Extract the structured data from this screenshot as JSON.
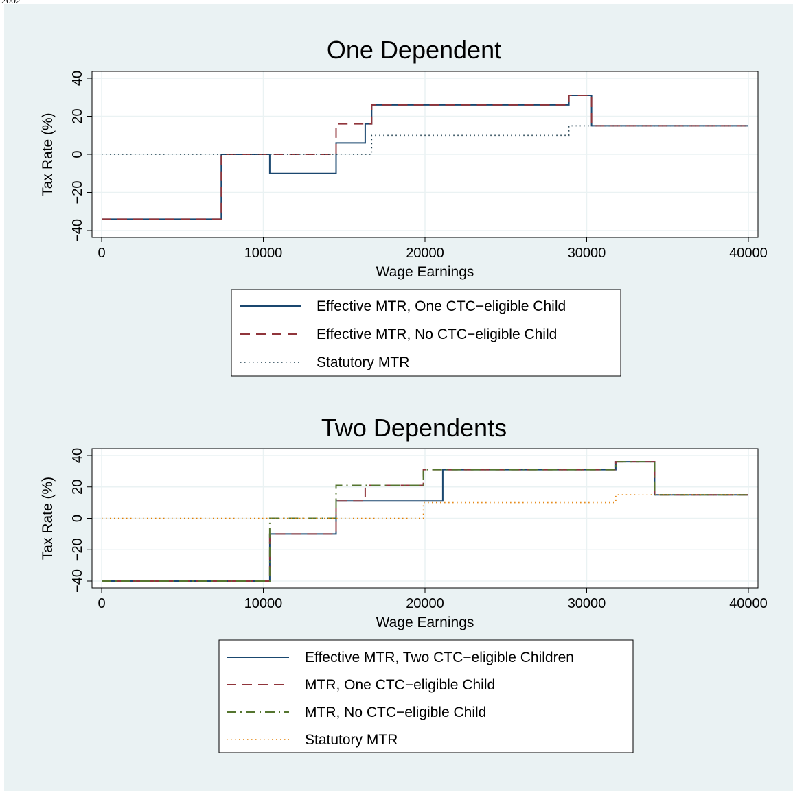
{
  "header": {
    "year_label": "2002"
  },
  "colors": {
    "background": "#eaf2f3",
    "plot_bg": "#ffffff",
    "grid": "#eaf2f3",
    "navy": "#1a476f",
    "maroon": "#90353b",
    "green": "#55752f",
    "orange": "#e37e00",
    "dark": "#1a3a4a"
  },
  "chart_data": [
    {
      "type": "line",
      "title": "One Dependent",
      "xlabel": "Wage Earnings",
      "ylabel": "Tax Rate (%)",
      "xlim": [
        0,
        40000
      ],
      "ylim": [
        -40,
        40
      ],
      "xticks": [
        0,
        10000,
        20000,
        30000,
        40000
      ],
      "xtick_labels": [
        "0",
        "10000",
        "20000",
        "30000",
        "40000"
      ],
      "yticks": [
        -40,
        -20,
        0,
        20,
        40
      ],
      "ytick_labels": [
        "−40",
        "−20",
        "0",
        "20",
        "40"
      ],
      "grid": true,
      "legend_position": "bottom",
      "series": [
        {
          "name": "Effective MTR, One CTC−eligible Child",
          "style": "solid",
          "color": "#1a476f",
          "points": [
            [
              0,
              -34
            ],
            [
              7400,
              -34
            ],
            [
              7400,
              0
            ],
            [
              10400,
              0
            ],
            [
              10400,
              -10
            ],
            [
              14500,
              -10
            ],
            [
              14500,
              6
            ],
            [
              16300,
              6
            ],
            [
              16300,
              16
            ],
            [
              16700,
              16
            ],
            [
              16700,
              26
            ],
            [
              28900,
              26
            ],
            [
              28900,
              31
            ],
            [
              30300,
              31
            ],
            [
              30300,
              15
            ],
            [
              40000,
              15
            ]
          ]
        },
        {
          "name": "Effective MTR, No CTC−eligible Child",
          "style": "dash",
          "color": "#90353b",
          "points": [
            [
              0,
              -34
            ],
            [
              7400,
              -34
            ],
            [
              7400,
              0
            ],
            [
              14500,
              0
            ],
            [
              14500,
              16
            ],
            [
              16700,
              16
            ],
            [
              16700,
              26
            ],
            [
              28900,
              26
            ],
            [
              28900,
              31
            ],
            [
              30300,
              31
            ],
            [
              30300,
              15
            ],
            [
              40000,
              15
            ]
          ]
        },
        {
          "name": "Statutory MTR",
          "style": "dot",
          "color": "#1a3a4a",
          "points": [
            [
              0,
              0
            ],
            [
              16700,
              0
            ],
            [
              16700,
              10
            ],
            [
              28900,
              10
            ],
            [
              28900,
              15
            ],
            [
              40000,
              15
            ]
          ]
        }
      ]
    },
    {
      "type": "line",
      "title": "Two Dependents",
      "xlabel": "Wage Earnings",
      "ylabel": "Tax Rate (%)",
      "xlim": [
        0,
        40000
      ],
      "ylim": [
        -40,
        40
      ],
      "xticks": [
        0,
        10000,
        20000,
        30000,
        40000
      ],
      "xtick_labels": [
        "0",
        "10000",
        "20000",
        "30000",
        "40000"
      ],
      "yticks": [
        -40,
        -20,
        0,
        20,
        40
      ],
      "ytick_labels": [
        "−40",
        "−20",
        "0",
        "20",
        "40"
      ],
      "grid": true,
      "legend_position": "bottom",
      "series": [
        {
          "name": "Effective MTR, Two CTC−eligible Children",
          "style": "solid",
          "color": "#1a476f",
          "points": [
            [
              0,
              -40
            ],
            [
              10400,
              -40
            ],
            [
              10400,
              -10
            ],
            [
              14500,
              -10
            ],
            [
              14500,
              11
            ],
            [
              21100,
              11
            ],
            [
              21100,
              31
            ],
            [
              31800,
              31
            ],
            [
              31800,
              36
            ],
            [
              34200,
              36
            ],
            [
              34200,
              15
            ],
            [
              40000,
              15
            ]
          ]
        },
        {
          "name": "MTR, One CTC−eligible Child",
          "style": "dash",
          "color": "#90353b",
          "points": [
            [
              0,
              -40
            ],
            [
              10400,
              -40
            ],
            [
              10400,
              -10
            ],
            [
              14500,
              -10
            ],
            [
              14500,
              11
            ],
            [
              16300,
              11
            ],
            [
              16300,
              21
            ],
            [
              19900,
              21
            ],
            [
              19900,
              31
            ],
            [
              31800,
              31
            ],
            [
              31800,
              36
            ],
            [
              34200,
              36
            ],
            [
              34200,
              15
            ],
            [
              40000,
              15
            ]
          ]
        },
        {
          "name": "MTR, No CTC−eligible Child",
          "style": "dashdot",
          "color": "#55752f",
          "points": [
            [
              0,
              -40
            ],
            [
              10400,
              -40
            ],
            [
              10400,
              0
            ],
            [
              14500,
              0
            ],
            [
              14500,
              21
            ],
            [
              19900,
              21
            ],
            [
              19900,
              31
            ],
            [
              31800,
              31
            ],
            [
              31800,
              36
            ],
            [
              34200,
              36
            ],
            [
              34200,
              15
            ],
            [
              40000,
              15
            ]
          ]
        },
        {
          "name": "Statutory MTR",
          "style": "dot",
          "color": "#e37e00",
          "points": [
            [
              0,
              0
            ],
            [
              19900,
              0
            ],
            [
              19900,
              10
            ],
            [
              31800,
              10
            ],
            [
              31800,
              15
            ],
            [
              40000,
              15
            ]
          ]
        }
      ]
    }
  ]
}
